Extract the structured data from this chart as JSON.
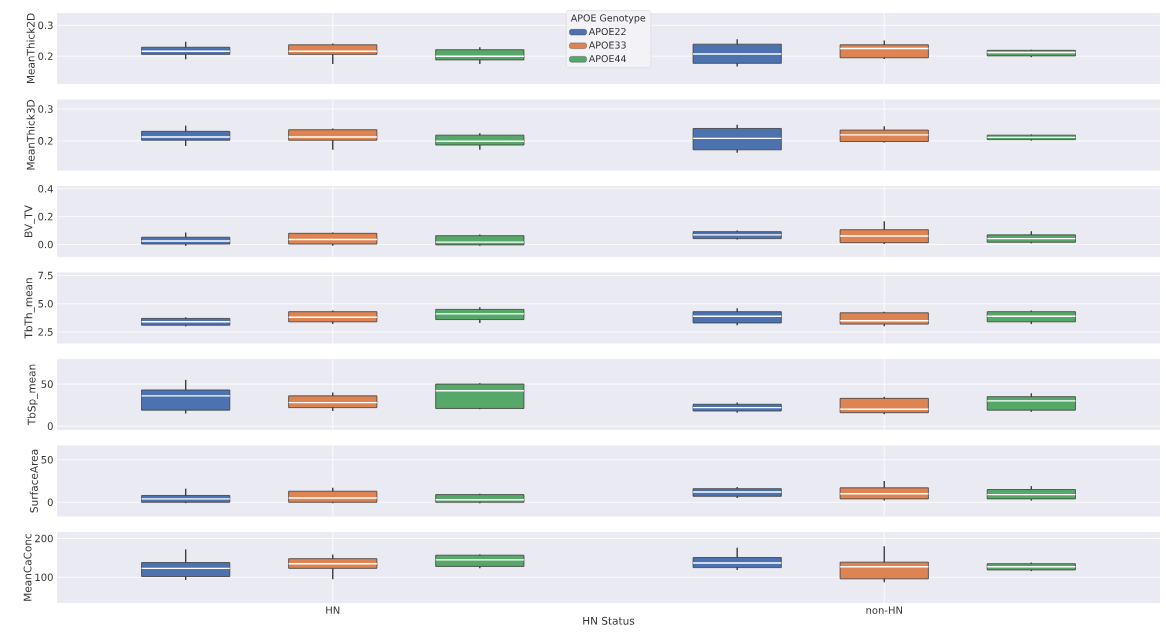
{
  "chart_data": [
    {
      "type": "box",
      "ylabel": "MeanThick2D",
      "categories": [
        null,
        null
      ],
      "ylim": [
        0.11,
        0.34
      ],
      "yticks": [
        0.2,
        0.3
      ],
      "grid": true,
      "legend": "top",
      "legend_title": "APOE Genotype",
      "series": [
        {
          "name": "APOE22",
          "color": "#4c72b0",
          "boxes": [
            {
              "low": 0.19,
              "q1": 0.206,
              "median": 0.216,
              "q3": 0.229,
              "high": 0.247
            },
            {
              "low": 0.167,
              "q1": 0.177,
              "median": 0.207,
              "q3": 0.239,
              "high": 0.255
            }
          ]
        },
        {
          "name": "APOE33",
          "color": "#dd8452",
          "boxes": [
            {
              "low": 0.175,
              "q1": 0.206,
              "median": 0.216,
              "q3": 0.237,
              "high": 0.241
            },
            {
              "low": 0.191,
              "q1": 0.195,
              "median": 0.225,
              "q3": 0.237,
              "high": 0.251
            }
          ]
        },
        {
          "name": "APOE44",
          "color": "#55a868",
          "boxes": [
            {
              "low": 0.175,
              "q1": 0.188,
              "median": 0.2,
              "q3": 0.221,
              "high": 0.229
            },
            {
              "low": 0.197,
              "q1": 0.201,
              "median": 0.212,
              "q3": 0.219,
              "high": 0.221
            }
          ]
        }
      ]
    },
    {
      "type": "box",
      "ylabel": "MeanThick3D",
      "categories": [
        null,
        null
      ],
      "ylim": [
        0.107,
        0.33
      ],
      "yticks": [
        0.2,
        0.3
      ],
      "grid": true,
      "series": [
        {
          "color": "#4c72b0",
          "boxes": [
            {
              "low": 0.184,
              "q1": 0.202,
              "median": 0.212,
              "q3": 0.23,
              "high": 0.248
            },
            {
              "low": 0.163,
              "q1": 0.172,
              "median": 0.208,
              "q3": 0.239,
              "high": 0.251
            }
          ]
        },
        {
          "color": "#dd8452",
          "boxes": [
            {
              "low": 0.172,
              "q1": 0.202,
              "median": 0.212,
              "q3": 0.235,
              "high": 0.239
            },
            {
              "low": 0.195,
              "q1": 0.198,
              "median": 0.219,
              "q3": 0.234,
              "high": 0.246
            }
          ]
        },
        {
          "color": "#55a868",
          "boxes": [
            {
              "low": 0.172,
              "q1": 0.187,
              "median": 0.199,
              "q3": 0.218,
              "high": 0.224
            },
            {
              "low": 0.201,
              "q1": 0.204,
              "median": 0.211,
              "q3": 0.218,
              "high": 0.22
            }
          ]
        }
      ]
    },
    {
      "type": "box",
      "ylabel": "BV_TV",
      "categories": [
        null,
        null
      ],
      "ylim": [
        -0.09,
        0.42
      ],
      "yticks": [
        {
          "value": 0,
          "label": "0.0"
        },
        0.2,
        0.4
      ],
      "grid": true,
      "series": [
        {
          "color": "#4c72b0",
          "boxes": [
            {
              "low": -0.01,
              "q1": 0.003,
              "median": 0.025,
              "q3": 0.052,
              "high": 0.086
            },
            {
              "low": 0.035,
              "q1": 0.042,
              "median": 0.069,
              "q3": 0.092,
              "high": 0.1
            }
          ]
        },
        {
          "color": "#dd8452",
          "boxes": [
            {
              "low": -0.01,
              "q1": 0.003,
              "median": 0.036,
              "q3": 0.08,
              "high": 0.086
            },
            {
              "low": 0.003,
              "q1": 0.013,
              "median": 0.061,
              "q3": 0.106,
              "high": 0.167
            }
          ]
        },
        {
          "color": "#55a868",
          "boxes": [
            {
              "low": -0.01,
              "q1": -0.003,
              "median": 0.017,
              "q3": 0.063,
              "high": 0.072
            },
            {
              "low": 0.008,
              "q1": 0.016,
              "median": 0.042,
              "q3": 0.069,
              "high": 0.095
            }
          ]
        }
      ]
    },
    {
      "type": "box",
      "ylabel": "TbTh_mean",
      "categories": [
        null,
        null
      ],
      "ylim": [
        1.48,
        7.77
      ],
      "yticks": [
        2.5,
        {
          "value": 5,
          "label": "5.0"
        },
        7.5
      ],
      "grid": true,
      "series": [
        {
          "color": "#4c72b0",
          "boxes": [
            {
              "low": 3.0,
              "q1": 3.1,
              "median": 3.4,
              "q3": 3.7,
              "high": 3.8
            },
            {
              "low": 3.1,
              "q1": 3.3,
              "median": 3.9,
              "q3": 4.3,
              "high": 4.6
            }
          ]
        },
        {
          "color": "#dd8452",
          "boxes": [
            {
              "low": 3.2,
              "q1": 3.4,
              "median": 3.8,
              "q3": 4.3,
              "high": 4.4
            },
            {
              "low": 3.0,
              "q1": 3.2,
              "median": 3.5,
              "q3": 4.2,
              "high": 4.3
            }
          ]
        },
        {
          "color": "#55a868",
          "boxes": [
            {
              "low": 3.3,
              "q1": 3.6,
              "median": 4.1,
              "q3": 4.5,
              "high": 4.7
            },
            {
              "low": 3.2,
              "q1": 3.4,
              "median": 3.9,
              "q3": 4.3,
              "high": 4.4
            }
          ]
        }
      ]
    },
    {
      "type": "box",
      "ylabel": "TbSp_mean",
      "categories": [
        null,
        null
      ],
      "ylim": [
        -4.6,
        79.8
      ],
      "yticks": [
        0,
        50
      ],
      "grid": true,
      "series": [
        {
          "color": "#4c72b0",
          "boxes": [
            {
              "low": 15,
              "q1": 19,
              "median": 36,
              "q3": 43,
              "high": 55
            },
            {
              "low": 16,
              "q1": 18,
              "median": 22,
              "q3": 26,
              "high": 28
            }
          ]
        },
        {
          "color": "#dd8452",
          "boxes": [
            {
              "low": 18,
              "q1": 22,
              "median": 28,
              "q3": 36,
              "high": 40
            },
            {
              "low": 14,
              "q1": 16,
              "median": 20,
              "q3": 33,
              "high": 35
            }
          ]
        },
        {
          "color": "#55a868",
          "boxes": [
            {
              "low": 20,
              "q1": 21,
              "median": 42,
              "q3": 50,
              "high": 51
            },
            {
              "low": 17,
              "q1": 19,
              "median": 30,
              "q3": 35,
              "high": 39
            }
          ]
        }
      ]
    },
    {
      "type": "box",
      "ylabel": "SurfaceArea",
      "categories": [
        null,
        null
      ],
      "ylim": [
        -16.7,
        66.7
      ],
      "yticks": [
        0,
        50
      ],
      "grid": true,
      "series": [
        {
          "color": "#4c72b0",
          "boxes": [
            {
              "low": -1,
              "q1": 0,
              "median": 4,
              "q3": 8,
              "high": 16
            },
            {
              "low": 5,
              "q1": 7,
              "median": 12,
              "q3": 16,
              "high": 18
            }
          ]
        },
        {
          "color": "#dd8452",
          "boxes": [
            {
              "low": -1,
              "q1": 0,
              "median": 5,
              "q3": 13,
              "high": 17
            },
            {
              "low": 2,
              "q1": 4,
              "median": 10,
              "q3": 17,
              "high": 25
            }
          ]
        },
        {
          "color": "#55a868",
          "boxes": [
            {
              "low": -1,
              "q1": 0,
              "median": 3,
              "q3": 9,
              "high": 10
            },
            {
              "low": 2,
              "q1": 4,
              "median": 9,
              "q3": 15,
              "high": 19
            }
          ]
        }
      ]
    },
    {
      "type": "box",
      "ylabel": "MeanCaConc",
      "xlabel": "HN Status",
      "categories": [
        "HN",
        "non-HN"
      ],
      "ylim": [
        33.7,
        216.8
      ],
      "yticks": [
        100,
        200
      ],
      "grid": true,
      "series": [
        {
          "color": "#4c72b0",
          "boxes": [
            {
              "low": 93,
              "q1": 102,
              "median": 123,
              "q3": 138,
              "high": 172
            },
            {
              "low": 119,
              "q1": 125,
              "median": 137,
              "q3": 151,
              "high": 176
            }
          ]
        },
        {
          "color": "#dd8452",
          "boxes": [
            {
              "low": 95,
              "q1": 123,
              "median": 135,
              "q3": 148,
              "high": 159
            },
            {
              "low": 87,
              "q1": 96,
              "median": 127,
              "q3": 139,
              "high": 180
            }
          ]
        },
        {
          "color": "#55a868",
          "boxes": [
            {
              "low": 123,
              "q1": 128,
              "median": 145,
              "q3": 157,
              "high": 159
            },
            {
              "low": 116,
              "q1": 119,
              "median": 127,
              "q3": 135,
              "high": 138
            }
          ]
        }
      ]
    }
  ]
}
